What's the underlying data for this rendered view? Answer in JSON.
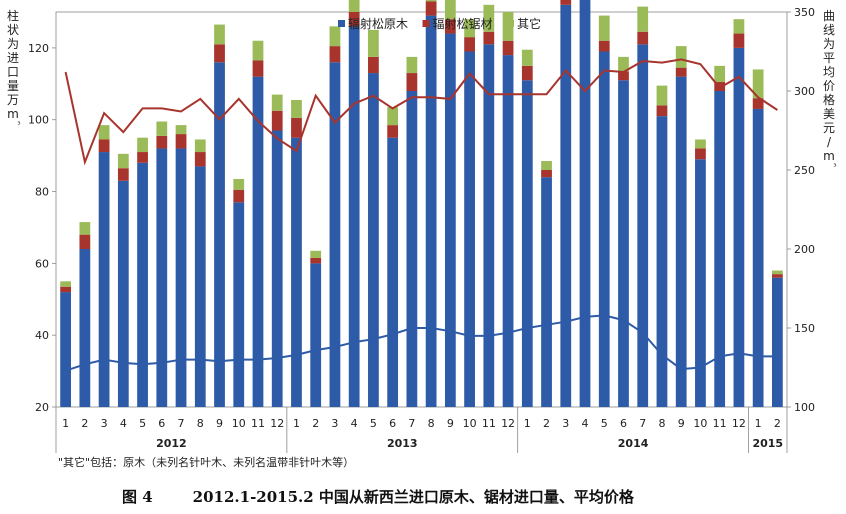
{
  "chart_data": {
    "type": "bar",
    "stacked": true,
    "legend_position": "top-center",
    "ylabel_left": "柱状为进口量万m³",
    "ylabel_right": "曲线为平均价格美元/m³",
    "ylim_left": [
      20,
      130
    ],
    "ylim_right": [
      100,
      350
    ],
    "yticks_left": [
      20,
      40,
      60,
      80,
      100,
      120
    ],
    "yticks_right": [
      100,
      150,
      200,
      250,
      300,
      350
    ],
    "month_labels": [
      "1",
      "2",
      "3",
      "4",
      "5",
      "6",
      "7",
      "8",
      "9",
      "10",
      "11",
      "12",
      "1",
      "2",
      "3",
      "4",
      "5",
      "6",
      "7",
      "8",
      "9",
      "10",
      "11",
      "12",
      "1",
      "2",
      "3",
      "4",
      "5",
      "6",
      "7",
      "8",
      "9",
      "10",
      "11",
      "12",
      "1",
      "2"
    ],
    "years": [
      {
        "label": "2012",
        "start": 0,
        "count": 12
      },
      {
        "label": "2013",
        "start": 12,
        "count": 12
      },
      {
        "label": "2014",
        "start": 24,
        "count": 12
      },
      {
        "label": "2015",
        "start": 36,
        "count": 2
      }
    ],
    "series": [
      {
        "name": "辐射松原木",
        "color": "#2E5BA8",
        "values": [
          32,
          44,
          71,
          63,
          68,
          72,
          72,
          67,
          96,
          57,
          92,
          77,
          75,
          40,
          96,
          106,
          93,
          75,
          88,
          109,
          104,
          99,
          101,
          98,
          91,
          64,
          112,
          121,
          99,
          91,
          101,
          81,
          92,
          69,
          88,
          100,
          83,
          36
        ]
      },
      {
        "name": "辐射松锯材",
        "color": "#A8342E",
        "values": [
          1.5,
          4,
          3.5,
          3.5,
          3,
          3.5,
          4,
          4,
          5,
          3.5,
          4.5,
          5.5,
          5.5,
          1.5,
          4.5,
          4,
          4.5,
          3.5,
          5,
          4,
          4,
          4,
          3.5,
          4,
          4,
          2,
          3,
          4,
          3,
          2.5,
          3.5,
          3,
          2.5,
          3,
          2.5,
          4,
          3,
          1
        ]
      },
      {
        "name": "其它",
        "color": "#9BBB59",
        "values": [
          1.5,
          3.5,
          4,
          4,
          4,
          4,
          2.5,
          3.5,
          5.5,
          3,
          5.5,
          4.5,
          5,
          2,
          5.5,
          6.5,
          7.5,
          5,
          4.5,
          6,
          6,
          5,
          7.5,
          8,
          4.5,
          2.5,
          7,
          5,
          7,
          4,
          7,
          5.5,
          6,
          2.5,
          4.5,
          4,
          8,
          1
        ]
      }
    ],
    "lines": [
      {
        "name": "line_upper",
        "color": "#A8342E",
        "values": [
          312,
          255,
          286,
          274,
          289,
          289,
          287,
          295,
          282,
          295,
          281,
          270,
          262,
          297,
          280,
          292,
          297,
          289,
          296,
          296,
          295,
          311,
          298,
          298,
          298,
          298,
          313,
          300,
          313,
          312,
          319,
          318,
          320,
          317,
          302,
          309,
          296,
          288
        ]
      },
      {
        "name": "line_lower",
        "color": "#2E5BA8",
        "values": [
          123,
          127,
          130,
          128,
          127,
          128,
          130,
          130,
          129,
          130,
          130,
          131,
          133,
          136,
          138,
          141,
          143,
          146,
          150,
          150,
          148,
          145,
          145,
          147,
          150,
          152,
          154,
          157,
          158,
          155,
          147,
          133,
          124,
          125,
          132,
          134,
          132,
          132
        ]
      }
    ]
  },
  "footnote": "\"其它\"包括：原木（未列名针叶木、未列名温带非针叶木等）",
  "caption": {
    "number": "图 4",
    "title": "2012.1-2015.2 中国从新西兰进口原木、锯材进口量、平均价格"
  }
}
